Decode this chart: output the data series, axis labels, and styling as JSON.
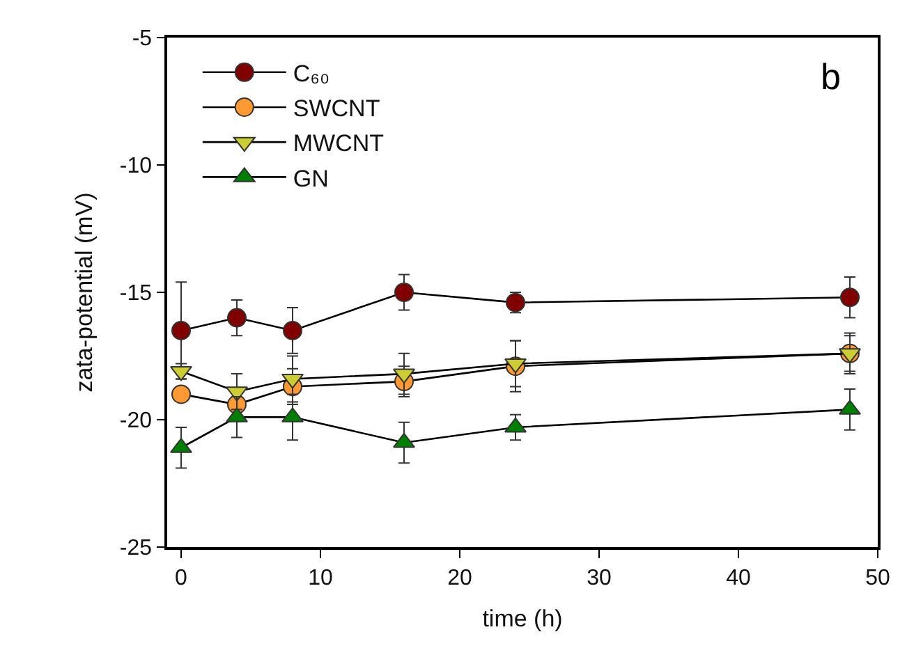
{
  "chart_data": {
    "type": "line",
    "xlabel": "time (h)",
    "ylabel": "zata-potential (mV)",
    "x": [
      0,
      4,
      8,
      16,
      24,
      48
    ],
    "xlim": [
      -1,
      50
    ],
    "xticks": [
      0,
      10,
      20,
      30,
      40,
      50
    ],
    "ylim": [
      -25,
      -5
    ],
    "yticks": [
      -25,
      -20,
      -15,
      -10,
      -5
    ],
    "legend": "top left",
    "line_style": "solid",
    "annotations": [
      "b"
    ],
    "series": [
      {
        "name": "C₆₀",
        "color": "#800000",
        "marker": "circle",
        "values": [
          -16.5,
          -16.0,
          -16.5,
          -15.0,
          -15.4,
          -15.2
        ],
        "errors": [
          1.9,
          0.7,
          0.9,
          0.7,
          0.4,
          0.8
        ]
      },
      {
        "name": "SWCNT",
        "color": "#ff9933",
        "marker": "circle",
        "values": [
          -19.0,
          -19.4,
          -18.7,
          -18.5,
          -17.9,
          -17.4
        ],
        "errors": [
          null,
          null,
          0.7,
          0.6,
          1.0,
          0.8
        ]
      },
      {
        "name": "MWCNT",
        "color": "#cccc33",
        "marker": "triangle-down",
        "values": [
          -18.1,
          -18.9,
          -18.4,
          -18.2,
          -17.8,
          -17.4
        ],
        "errors": [
          0.3,
          0.7,
          0.9,
          0.8,
          0.9,
          0.7
        ]
      },
      {
        "name": "GN",
        "color": "#008000",
        "marker": "triangle",
        "values": [
          -21.1,
          -19.9,
          -19.9,
          -20.9,
          -20.3,
          -19.6
        ],
        "errors": [
          0.8,
          0.8,
          0.9,
          0.8,
          0.5,
          0.8
        ]
      }
    ]
  }
}
